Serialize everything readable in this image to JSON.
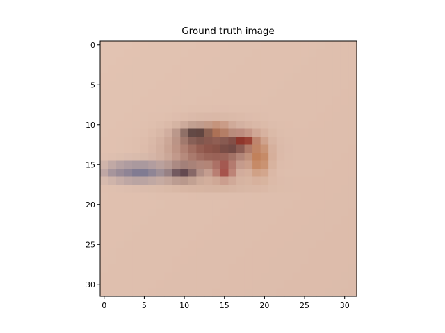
{
  "chart_data": {
    "type": "heatmap",
    "title": "Ground truth image",
    "xlabel": "",
    "ylabel": "",
    "xlim": [
      -0.5,
      31.5
    ],
    "ylim": [
      31.5,
      -0.5
    ],
    "x_ticks": [
      0,
      5,
      10,
      15,
      20,
      25,
      30
    ],
    "y_ticks": [
      0,
      5,
      10,
      15,
      20,
      25,
      30
    ],
    "grid": false,
    "image_size": [
      32,
      32
    ],
    "background_color": "#e2c3b2",
    "blobs": [
      {
        "x": 13.5,
        "y": 13.0,
        "rx": 5.0,
        "ry": 2.6,
        "color": "#7a3a30",
        "alpha": 0.8
      },
      {
        "x": 11.5,
        "y": 11.2,
        "rx": 2.0,
        "ry": 0.9,
        "color": "#2a1a1c",
        "alpha": 0.7
      },
      {
        "x": 16.0,
        "y": 12.6,
        "rx": 1.6,
        "ry": 1.0,
        "color": "#3a2428",
        "alpha": 0.55
      },
      {
        "x": 17.5,
        "y": 12.0,
        "rx": 1.3,
        "ry": 0.8,
        "color": "#8a1a10",
        "alpha": 0.8
      },
      {
        "x": 19.4,
        "y": 14.2,
        "rx": 1.2,
        "ry": 2.2,
        "color": "#b8642e",
        "alpha": 0.65
      },
      {
        "x": 14.2,
        "y": 10.6,
        "rx": 1.3,
        "ry": 0.7,
        "color": "#b86232",
        "alpha": 0.6
      },
      {
        "x": 15.0,
        "y": 15.7,
        "rx": 1.2,
        "ry": 1.2,
        "color": "#8a1a18",
        "alpha": 0.65
      },
      {
        "x": 9.8,
        "y": 16.0,
        "rx": 2.0,
        "ry": 1.0,
        "color": "#3c2230",
        "alpha": 0.75
      },
      {
        "x": 4.5,
        "y": 15.9,
        "rx": 3.4,
        "ry": 1.2,
        "color": "#525a84",
        "alpha": 0.7
      },
      {
        "x": 1.6,
        "y": 15.8,
        "rx": 2.0,
        "ry": 0.9,
        "color": "#8a7c90",
        "alpha": 0.55
      },
      {
        "x": 13.5,
        "y": 17.5,
        "rx": 6.5,
        "ry": 0.9,
        "color": "#c9a48e",
        "alpha": 0.5
      }
    ]
  }
}
